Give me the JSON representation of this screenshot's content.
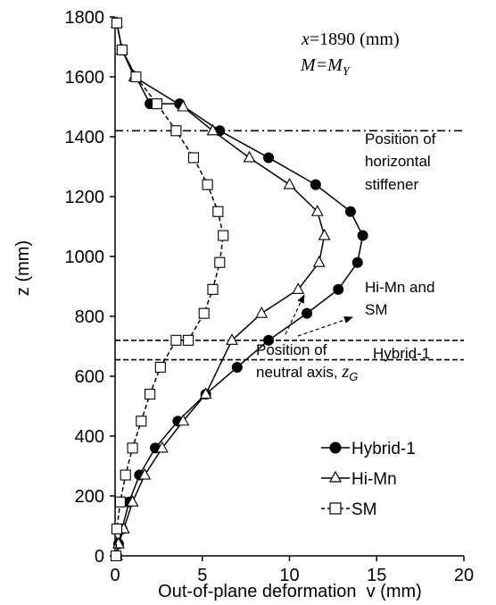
{
  "chart_data": {
    "type": "line",
    "xlabel": "Out-of-plane deformation  v (mm)",
    "ylabel": "z (mm)",
    "xlim": [
      0,
      20
    ],
    "ylim": [
      0,
      1800
    ],
    "xticks": [
      "0",
      "5",
      "10",
      "15",
      "20"
    ],
    "yticks": [
      "0",
      "200",
      "400",
      "600",
      "800",
      "1000",
      "1200",
      "1400",
      "1600",
      "1800"
    ],
    "grid": false,
    "legend_position": "bottom-right",
    "series": [
      {
        "name": "Hybrid-1",
        "marker": "filled-circle",
        "x": [
          0.1,
          0.4,
          1.2,
          2.0,
          3.7,
          6.0,
          8.8,
          11.5,
          13.5,
          14.2,
          13.9,
          12.8,
          11.0,
          8.8,
          7.0,
          5.2,
          3.6,
          2.3,
          1.4,
          0.8,
          0.4,
          0.2,
          0.1
        ],
        "y": [
          1780,
          1690,
          1600,
          1510,
          1510,
          1420,
          1330,
          1240,
          1150,
          1070,
          980,
          890,
          810,
          720,
          630,
          540,
          450,
          360,
          270,
          180,
          90,
          40,
          0
        ]
      },
      {
        "name": "Hi-Mn",
        "marker": "open-triangle",
        "x": [
          0.1,
          0.4,
          1.1,
          3.9,
          5.6,
          7.7,
          10.0,
          11.6,
          12.0,
          11.7,
          10.5,
          8.4,
          6.7,
          5.2,
          3.9,
          2.7,
          1.7,
          1.0,
          0.5,
          0.2,
          0.1
        ],
        "y": [
          1780,
          1690,
          1600,
          1500,
          1420,
          1330,
          1240,
          1150,
          1070,
          980,
          890,
          810,
          720,
          540,
          450,
          360,
          270,
          180,
          90,
          40,
          0
        ]
      },
      {
        "name": "SM",
        "marker": "open-square",
        "x": [
          0.1,
          0.4,
          1.2,
          2.4,
          3.5,
          4.5,
          5.3,
          5.9,
          6.2,
          6.0,
          5.6,
          5.1,
          4.2,
          3.5,
          2.6,
          2.0,
          1.5,
          1.0,
          0.6,
          0.3,
          0.1,
          0.05
        ],
        "y": [
          1780,
          1690,
          1600,
          1510,
          1420,
          1330,
          1240,
          1150,
          1070,
          980,
          890,
          810,
          720,
          720,
          630,
          540,
          450,
          360,
          270,
          180,
          90,
          0
        ]
      }
    ],
    "reference_lines": [
      {
        "style": "dash-dot",
        "z": 1420
      },
      {
        "style": "dashed",
        "z": 720
      },
      {
        "style": "dashed",
        "z": 655
      }
    ]
  },
  "annotations": {
    "case_x": "x=1890 (mm)",
    "case_m": "M=M",
    "case_m_sub": "Y",
    "stiffener_1": "Position of",
    "stiffener_2": "horizontal",
    "stiffener_3": "stiffener",
    "himn_1": "Hi-Mn and",
    "himn_2": "SM",
    "hybrid": "Hybrid-1",
    "neutral_1": "Position of",
    "neutral_2": "neutral axis,",
    "neutral_z": "z",
    "neutral_z_sub": "G"
  }
}
